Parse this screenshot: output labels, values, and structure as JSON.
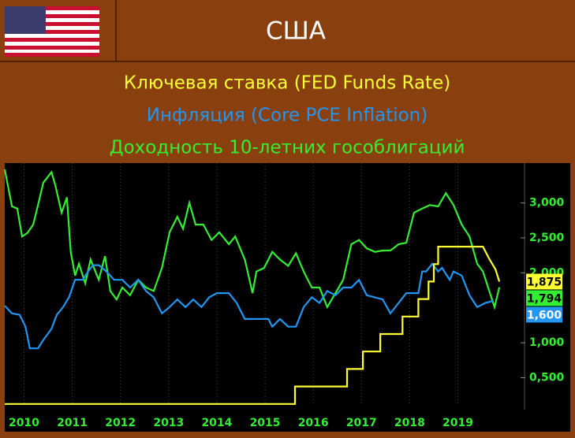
{
  "header": {
    "title": "США"
  },
  "chart_data": {
    "type": "line",
    "series": [
      {
        "name": "Ключевая ставка (FED Funds Rate)",
        "color": "#ffff33",
        "end_label": "1,875",
        "x": [
          2009.6,
          2015.62,
          2015.62,
          2016.7,
          2016.7,
          2017.03,
          2017.03,
          2017.39,
          2017.39,
          2017.85,
          2017.85,
          2018.18,
          2018.18,
          2018.39,
          2018.39,
          2018.5,
          2018.5,
          2018.59,
          2018.59,
          2019.52,
          2019.65,
          2019.78,
          2019.86
        ],
        "values": [
          0.125,
          0.125,
          0.375,
          0.375,
          0.625,
          0.625,
          0.875,
          0.875,
          1.125,
          1.125,
          1.375,
          1.375,
          1.625,
          1.625,
          1.875,
          1.875,
          2.125,
          2.125,
          2.375,
          2.375,
          2.2,
          2.05,
          1.875
        ]
      },
      {
        "name": "Инфляция (Core PCE Inflation)",
        "color": "#2196f3",
        "end_label": "1,600",
        "x": [
          2009.6,
          2009.75,
          2009.91,
          2010.03,
          2010.12,
          2010.29,
          2010.4,
          2010.57,
          2010.68,
          2010.81,
          2010.94,
          2011.06,
          2011.22,
          2011.33,
          2011.43,
          2011.55,
          2011.71,
          2011.87,
          2012.04,
          2012.2,
          2012.37,
          2012.53,
          2012.69,
          2012.86,
          2013.02,
          2013.18,
          2013.35,
          2013.51,
          2013.68,
          2013.84,
          2014.0,
          2014.25,
          2014.41,
          2014.58,
          2014.74,
          2015.07,
          2015.15,
          2015.31,
          2015.48,
          2015.64,
          2015.8,
          2015.97,
          2016.13,
          2016.29,
          2016.46,
          2016.62,
          2016.79,
          2016.95,
          2017.11,
          2017.44,
          2017.6,
          2017.77,
          2017.93,
          2018.18,
          2018.26,
          2018.34,
          2018.47,
          2018.59,
          2018.67,
          2018.83,
          2018.91,
          2019.08,
          2019.24,
          2019.4,
          2019.57,
          2019.73
        ],
        "values": [
          1.53,
          1.42,
          1.4,
          1.23,
          0.92,
          0.92,
          1.04,
          1.2,
          1.4,
          1.51,
          1.66,
          1.9,
          1.9,
          2.02,
          2.11,
          2.11,
          2.02,
          1.9,
          1.9,
          1.79,
          1.9,
          1.74,
          1.65,
          1.42,
          1.51,
          1.62,
          1.51,
          1.62,
          1.51,
          1.65,
          1.71,
          1.71,
          1.57,
          1.34,
          1.34,
          1.34,
          1.23,
          1.34,
          1.23,
          1.23,
          1.51,
          1.65,
          1.57,
          1.74,
          1.68,
          1.79,
          1.79,
          1.9,
          1.68,
          1.62,
          1.42,
          1.57,
          1.71,
          1.71,
          2.02,
          2.02,
          2.13,
          2.02,
          2.07,
          1.9,
          2.02,
          1.96,
          1.68,
          1.51,
          1.57,
          1.6
        ]
      },
      {
        "name": "Доходность 10-летних гособлигаций",
        "color": "#33ee33",
        "end_label": "1,794",
        "x": [
          2009.6,
          2009.75,
          2009.86,
          2009.96,
          2010.07,
          2010.19,
          2010.29,
          2010.4,
          2010.57,
          2010.65,
          2010.78,
          2010.89,
          2010.97,
          2011.06,
          2011.14,
          2011.27,
          2011.38,
          2011.55,
          2011.68,
          2011.79,
          2011.92,
          2012.04,
          2012.2,
          2012.37,
          2012.53,
          2012.69,
          2012.86,
          2013.02,
          2013.18,
          2013.3,
          2013.43,
          2013.56,
          2013.72,
          2013.89,
          2014.05,
          2014.25,
          2014.38,
          2014.58,
          2014.74,
          2014.82,
          2014.98,
          2015.15,
          2015.31,
          2015.48,
          2015.64,
          2015.8,
          2015.97,
          2016.13,
          2016.29,
          2016.46,
          2016.62,
          2016.79,
          2016.95,
          2017.11,
          2017.28,
          2017.44,
          2017.6,
          2017.77,
          2017.93,
          2018.09,
          2018.26,
          2018.42,
          2018.59,
          2018.75,
          2018.91,
          2019.08,
          2019.24,
          2019.4,
          2019.52,
          2019.65,
          2019.76,
          2019.86
        ],
        "values": [
          3.48,
          2.95,
          2.92,
          2.52,
          2.57,
          2.69,
          2.97,
          3.29,
          3.44,
          3.25,
          2.86,
          3.08,
          2.3,
          1.96,
          2.13,
          1.85,
          2.19,
          1.9,
          2.24,
          1.74,
          1.62,
          1.79,
          1.68,
          1.9,
          1.79,
          1.74,
          2.07,
          2.58,
          2.8,
          2.63,
          3.0,
          2.69,
          2.69,
          2.47,
          2.58,
          2.41,
          2.52,
          2.19,
          1.71,
          2.02,
          2.07,
          2.3,
          2.19,
          2.1,
          2.28,
          2.02,
          1.79,
          1.79,
          1.51,
          1.71,
          1.9,
          2.41,
          2.47,
          2.35,
          2.3,
          2.32,
          2.32,
          2.41,
          2.43,
          2.86,
          2.92,
          2.97,
          2.95,
          3.14,
          2.97,
          2.69,
          2.52,
          2.13,
          2.02,
          1.74,
          1.51,
          1.794
        ]
      }
    ],
    "xlim": [
      2009.6,
      2020.3
    ],
    "xticks": [
      2010,
      2011,
      2012,
      2013,
      2014,
      2015,
      2016,
      2017,
      2018,
      2019
    ],
    "ylim": [
      0.1,
      3.57
    ],
    "yticks": [
      {
        "value": 0.5,
        "label": "0,500"
      },
      {
        "value": 1,
        "label": "1,000"
      },
      {
        "value": 2,
        "label": "2,000"
      },
      {
        "value": 2.5,
        "label": "2,500"
      },
      {
        "value": 3,
        "label": "3,000"
      }
    ],
    "grid": true
  }
}
